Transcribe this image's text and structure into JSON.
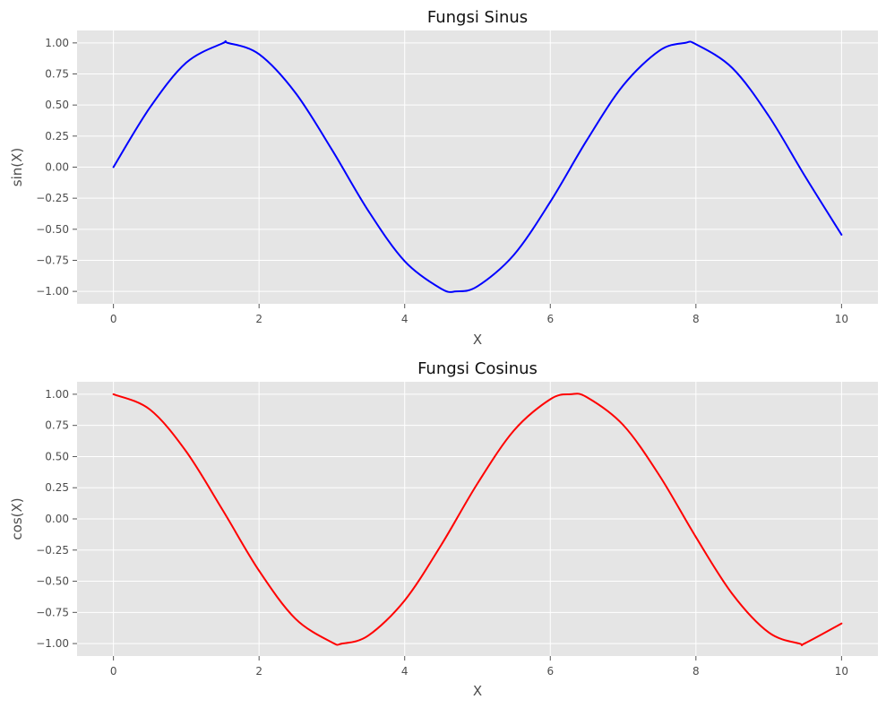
{
  "chart_data": [
    {
      "type": "line",
      "title": "Fungsi Sinus",
      "xlabel": "X",
      "ylabel": "sin(X)",
      "xlim": [
        -0.5,
        10.5
      ],
      "ylim": [
        -1.1,
        1.1
      ],
      "grid": true,
      "xticks": [
        0,
        2,
        4,
        6,
        8,
        10
      ],
      "xtick_labels": [
        "0",
        "2",
        "4",
        "6",
        "8",
        "10"
      ],
      "yticks": [
        1.0,
        0.75,
        0.5,
        0.25,
        0.0,
        -0.25,
        -0.5,
        -0.75,
        -1.0
      ],
      "ytick_labels": [
        "1.00",
        "0.75",
        "0.50",
        "0.25",
        "0.00",
        "−0.25",
        "−0.50",
        "−0.75",
        "−1.00"
      ],
      "series": [
        {
          "color": "#0000ff",
          "x": [
            0,
            0.5,
            1,
            1.5,
            1.57,
            2,
            2.5,
            3,
            3.5,
            4,
            4.5,
            4.71,
            5,
            5.5,
            6,
            6.5,
            7,
            7.5,
            7.85,
            8,
            8.5,
            9,
            9.5,
            10
          ],
          "y": [
            0.0,
            0.479,
            0.841,
            0.997,
            1.0,
            0.909,
            0.598,
            0.141,
            -0.351,
            -0.757,
            -0.978,
            -1.0,
            -0.959,
            -0.706,
            -0.279,
            0.215,
            0.657,
            0.938,
            1.0,
            0.989,
            0.798,
            0.412,
            -0.075,
            -0.544
          ]
        }
      ]
    },
    {
      "type": "line",
      "title": "Fungsi Cosinus",
      "xlabel": "X",
      "ylabel": "cos(X)",
      "xlim": [
        -0.5,
        10.5
      ],
      "ylim": [
        -1.1,
        1.1
      ],
      "grid": true,
      "xticks": [
        0,
        2,
        4,
        6,
        8,
        10
      ],
      "xtick_labels": [
        "0",
        "2",
        "4",
        "6",
        "8",
        "10"
      ],
      "yticks": [
        1.0,
        0.75,
        0.5,
        0.25,
        0.0,
        -0.25,
        -0.5,
        -0.75,
        -1.0
      ],
      "ytick_labels": [
        "1.00",
        "0.75",
        "0.50",
        "0.25",
        "0.00",
        "−0.25",
        "−0.50",
        "−0.75",
        "−1.00"
      ],
      "series": [
        {
          "color": "#ff0000",
          "x": [
            0,
            0.5,
            1,
            1.5,
            2,
            2.5,
            3,
            3.14,
            3.5,
            4,
            4.5,
            5,
            5.5,
            6,
            6.28,
            6.5,
            7,
            7.5,
            8,
            8.5,
            9,
            9.42,
            9.5,
            10
          ],
          "y": [
            1.0,
            0.878,
            0.54,
            0.071,
            -0.416,
            -0.801,
            -0.99,
            -1.0,
            -0.936,
            -0.654,
            -0.211,
            0.284,
            0.709,
            0.96,
            1.0,
            0.977,
            0.754,
            0.347,
            -0.146,
            -0.602,
            -0.911,
            -1.0,
            -0.997,
            -0.839
          ]
        }
      ]
    }
  ]
}
